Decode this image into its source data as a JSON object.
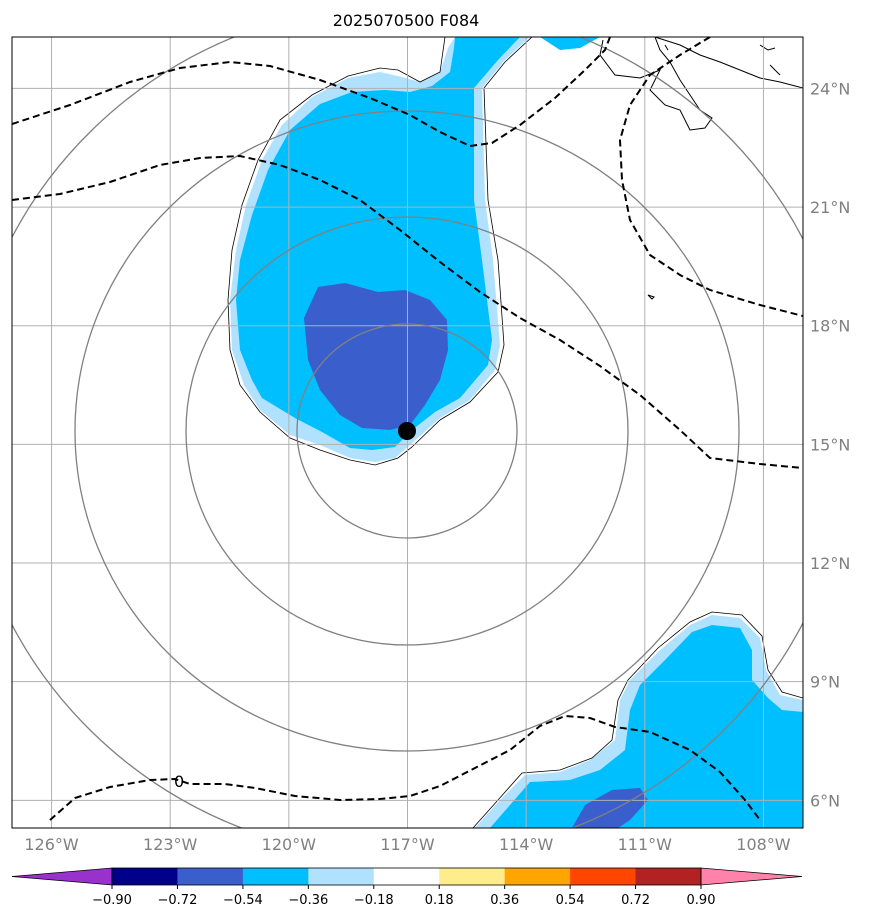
{
  "title": "2025070500 F084",
  "map": {
    "lon_range": [
      -127.0,
      -107.0
    ],
    "lat_range": [
      5.3,
      25.3
    ],
    "lat_labels": [
      "24°N",
      "21°N",
      "18°N",
      "15°N",
      "12°N",
      "9°N",
      "6°N"
    ],
    "lat_values": [
      24,
      21,
      18,
      15,
      12,
      9,
      6
    ],
    "lon_labels": [
      "126°W",
      "123°W",
      "120°W",
      "117°W",
      "114°W",
      "111°W",
      "108°W"
    ],
    "lon_values": [
      -126,
      -123,
      -120,
      -117,
      -114,
      -111,
      -108
    ],
    "contour_label": "0",
    "storm_center": {
      "lon": -117.0,
      "lat": 15.3
    },
    "range_rings_center": {
      "lon": -117.0,
      "lat": 15.1
    }
  },
  "colorbar": {
    "levels": [
      "−0.90",
      "−0.72",
      "−0.54",
      "−0.36",
      "−0.18",
      "0.18",
      "0.36",
      "0.54",
      "0.72",
      "0.90"
    ],
    "colors": [
      "#9932cc",
      "#00008b",
      "#3a5fcd",
      "#00bfff",
      "#b0e2ff",
      "#ffffff",
      "#ffec8b",
      "#ffa500",
      "#ff4500",
      "#b22222",
      "#ff82ab"
    ]
  },
  "colors": {
    "light_blue": "#b0e2ff",
    "mid_blue": "#00bfff",
    "dark_blue": "#3a5fcd",
    "grid": "#b0b0b0",
    "rings": "#808080"
  }
}
